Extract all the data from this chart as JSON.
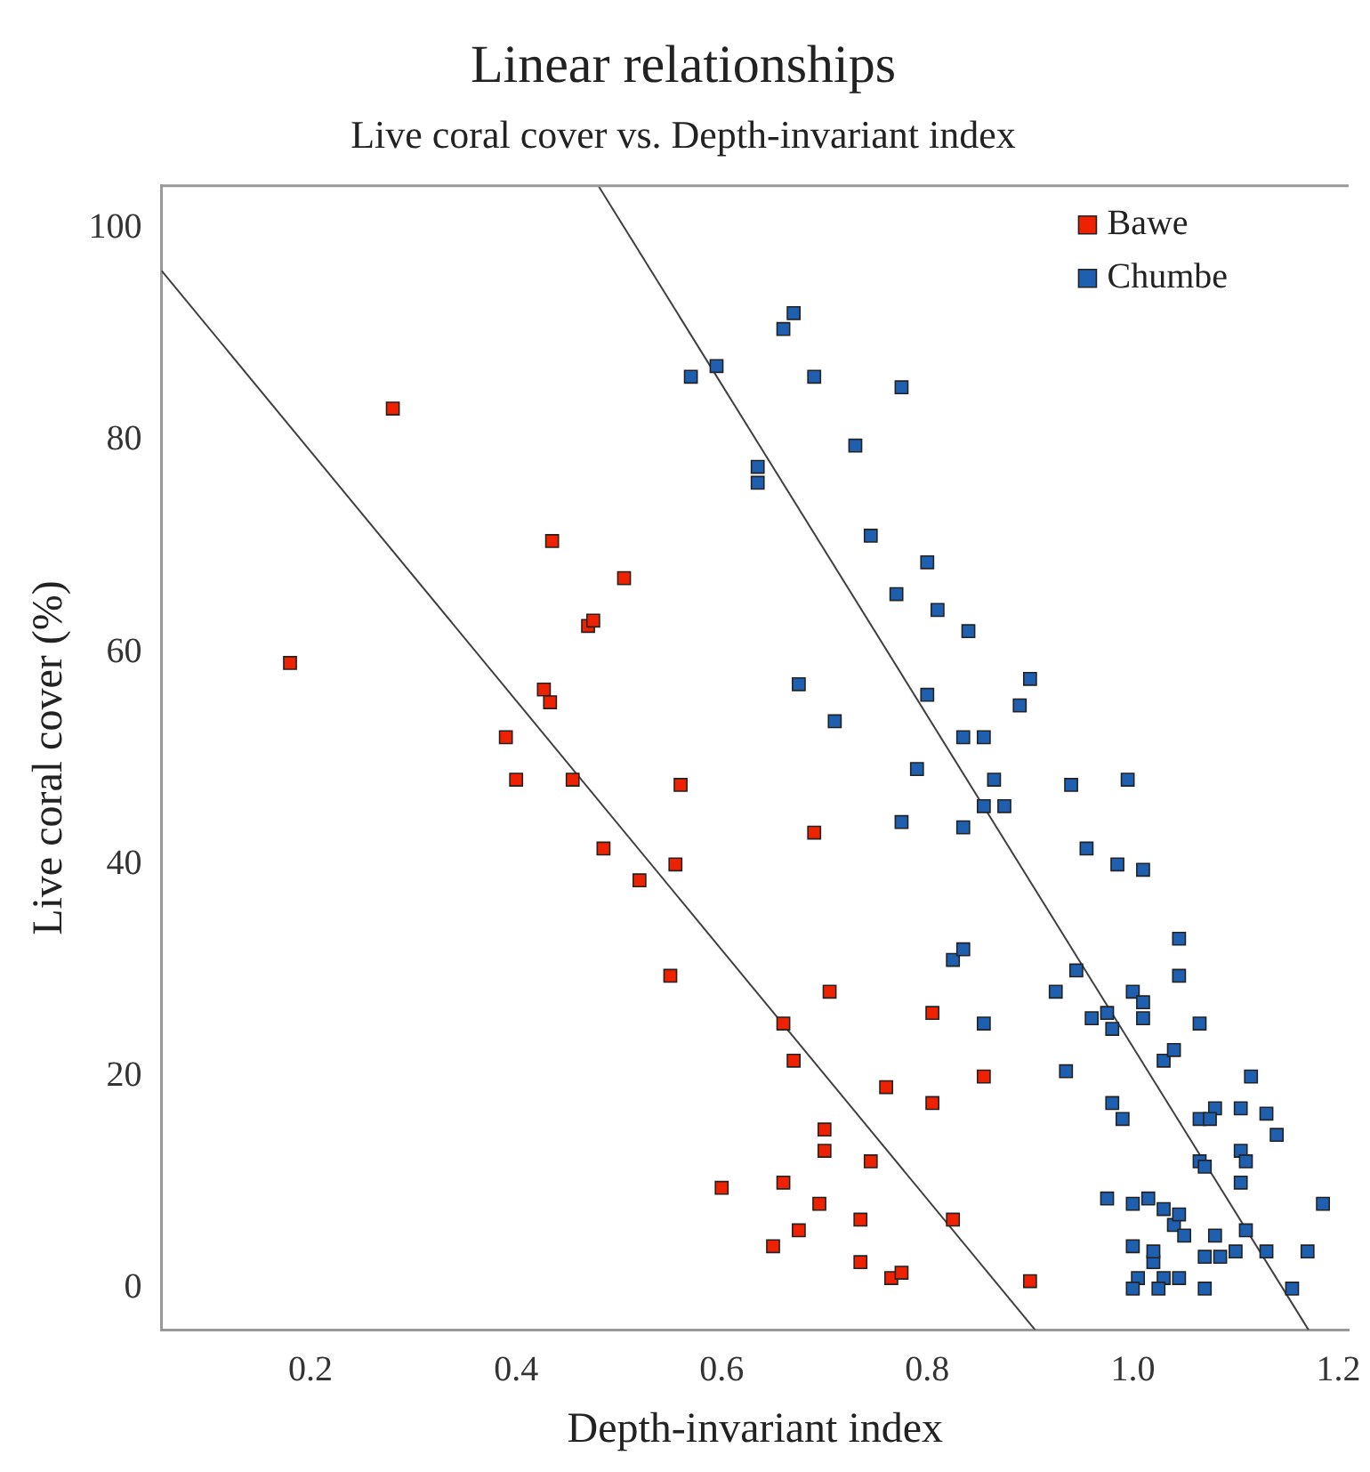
{
  "chart_data": {
    "type": "scatter",
    "title": "Linear relationships",
    "subtitle": "Live coral cover vs. Depth-invariant index",
    "xlabel": "Depth-invariant index",
    "ylabel": "Live coral cover (%)",
    "xlim": [
      0.055,
      1.21
    ],
    "ylim": [
      -3.9,
      104
    ],
    "xticks": [
      0.2,
      0.4,
      0.6,
      0.8,
      {
        "value": 1,
        "label": "1.0"
      },
      1.2
    ],
    "yticks": [
      0,
      20,
      40,
      60,
      80,
      100
    ],
    "grid": false,
    "legend": "top right",
    "marker": "square",
    "series": [
      {
        "name": "Bawe",
        "color": "#ee2200",
        "x": [
          0.18,
          0.28,
          0.39,
          0.4,
          0.427,
          0.433,
          0.435,
          0.455,
          0.47,
          0.475,
          0.485,
          0.505,
          0.52,
          0.55,
          0.555,
          0.56,
          0.6,
          0.66,
          0.66,
          0.67,
          0.65,
          0.675,
          0.69,
          0.695,
          0.7,
          0.7,
          0.705,
          0.735,
          0.735,
          0.745,
          0.76,
          0.765,
          0.775,
          0.805,
          0.805,
          0.825,
          0.855,
          0.9
        ],
        "values": [
          59,
          83,
          52,
          48,
          56.5,
          55.3,
          70.5,
          48,
          62.5,
          63,
          41.5,
          67,
          38.5,
          29.5,
          40,
          47.5,
          9.5,
          25,
          10,
          21.5,
          4,
          5.5,
          43,
          8,
          13,
          15,
          28,
          6.5,
          2.5,
          12,
          19,
          1,
          1.5,
          26,
          17.5,
          6.5,
          20,
          0.7
        ]
      },
      {
        "name": "Chumbe",
        "color": "#1f5fb0",
        "x": [
          0.57,
          0.595,
          0.635,
          0.635,
          0.66,
          0.67,
          0.69,
          0.775,
          0.73,
          0.745,
          0.77,
          0.8,
          0.81,
          0.84,
          0.675,
          0.71,
          0.8,
          0.9,
          0.89,
          0.79,
          0.835,
          0.855,
          0.865,
          0.775,
          0.835,
          0.855,
          0.875,
          0.94,
          0.995,
          0.955,
          0.985,
          1.01,
          0.825,
          0.835,
          0.855,
          0.945,
          0.925,
          0.935,
          0.96,
          0.975,
          0.98,
          0.98,
          0.99,
          1.0,
          1.01,
          1.01,
          1.03,
          1.04,
          1.045,
          1.045,
          1.065,
          1.08,
          1.065,
          1.075,
          1.105,
          1.115,
          1.105,
          1.11,
          1.13,
          1.14,
          1.065,
          1.07,
          1.105,
          1.185,
          0.975,
          1.0,
          1.015,
          1.03,
          1.04,
          1.045,
          1.05,
          1.08,
          1.11,
          1.0,
          1.005,
          1.02,
          1.02,
          1.03,
          1.045,
          1.07,
          1.07,
          1.085,
          1.1,
          1.13,
          1.17,
          1.0,
          1.025,
          1.155
        ],
        "values": [
          86,
          87,
          77.5,
          76,
          90.5,
          92,
          86,
          85,
          79.5,
          71,
          65.5,
          68.5,
          64,
          62,
          57,
          53.5,
          56,
          57.5,
          55,
          49,
          52,
          52,
          48,
          44,
          43.5,
          45.5,
          45.5,
          47.5,
          48,
          41.5,
          40,
          39.5,
          31,
          32,
          25,
          30,
          28,
          20.5,
          25.5,
          26,
          24.5,
          17.5,
          16,
          28,
          25.5,
          27,
          21.5,
          22.5,
          29.5,
          33,
          25,
          17,
          16,
          16,
          17,
          20,
          13,
          12,
          16.5,
          14.5,
          12,
          11.5,
          10,
          8,
          8.5,
          8,
          8.5,
          7.5,
          6,
          7,
          5,
          5,
          5.5,
          4,
          1,
          2.5,
          3.5,
          1,
          1,
          0,
          3,
          3,
          3.5,
          3.5,
          3.5,
          0,
          0,
          0
        ]
      },
      {
        "type": "line",
        "marker": "none",
        "color": "#404040",
        "x": [
          0.055,
          0.905
        ],
        "values": [
          96,
          -3.9
        ]
      },
      {
        "type": "line",
        "marker": "none",
        "color": "#404040",
        "x": [
          0.48,
          1.171
        ],
        "values": [
          104,
          -3.9
        ]
      }
    ]
  }
}
